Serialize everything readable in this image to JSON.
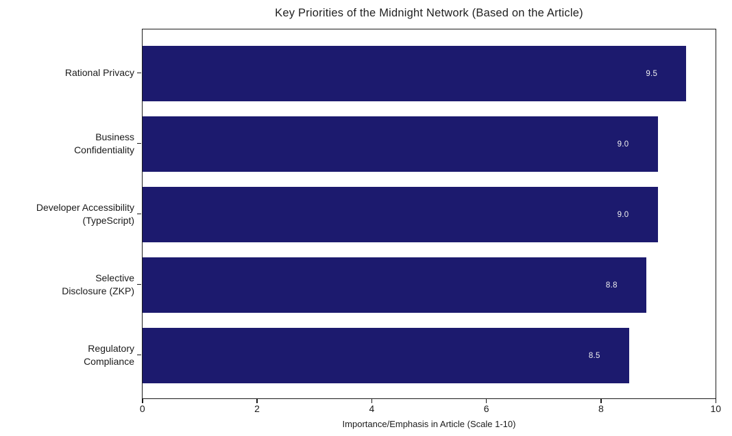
{
  "chart_data": {
    "type": "bar",
    "orientation": "horizontal",
    "title": "Key Priorities of the Midnight Network (Based on the Article)",
    "categories": [
      "Rational Privacy",
      "Business\nConfidentiality",
      "Developer Accessibility\n(TypeScript)",
      "Selective\nDisclosure (ZKP)",
      "Regulatory\nCompliance"
    ],
    "values": [
      9.5,
      9.0,
      9.0,
      8.8,
      8.5
    ],
    "value_labels": [
      "9.5",
      "9.0",
      "9.0",
      "8.8",
      "8.5"
    ],
    "xlabel": "Importance/Emphasis in Article (Scale 1-10)",
    "ylabel": "",
    "xlim": [
      0,
      10
    ],
    "xticks": [
      0,
      2,
      4,
      6,
      8,
      10
    ],
    "grid": false,
    "legend": "none",
    "colors": {
      "bar": "#1c1a6e",
      "value_label": "#f0f0f0",
      "spine": "#1a1a1a",
      "text": "#1a1a1a",
      "background": "#ffffff"
    }
  }
}
